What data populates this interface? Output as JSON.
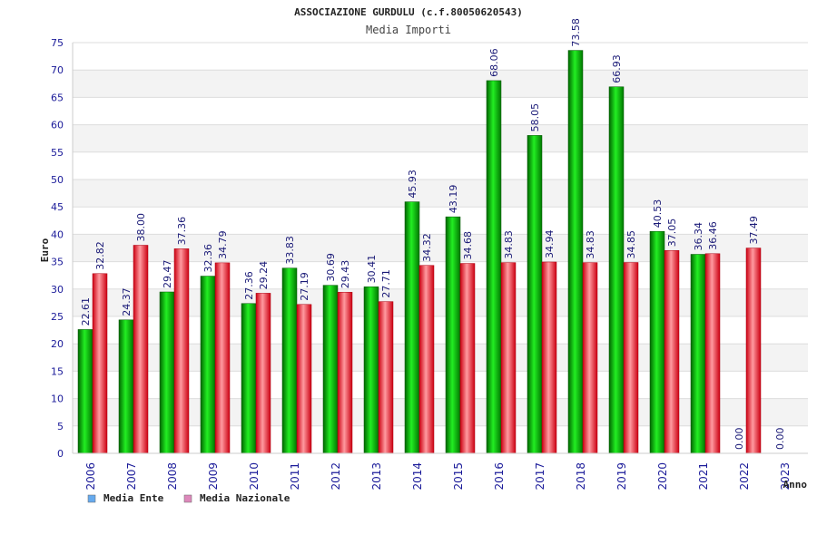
{
  "chart_data": {
    "type": "bar",
    "title": "ASSOCIAZIONE GURDULU (c.f.80050620543)",
    "subtitle": "Media Importi",
    "xlabel": "Anno",
    "ylabel": "Euro",
    "ylim": [
      0,
      75
    ],
    "yticks": [
      0,
      5,
      10,
      15,
      20,
      25,
      30,
      35,
      40,
      45,
      50,
      55,
      60,
      65,
      70,
      75
    ],
    "grid": true,
    "legend_position": "bottom-left",
    "categories": [
      "2006",
      "2007",
      "2008",
      "2009",
      "2010",
      "2011",
      "2012",
      "2013",
      "2014",
      "2015",
      "2016",
      "2017",
      "2018",
      "2019",
      "2020",
      "2021",
      "2022",
      "2023"
    ],
    "series": [
      {
        "name": "Media Ente",
        "color": "#00aa00",
        "legend_color": "#66aaee",
        "values": [
          22.61,
          24.37,
          29.47,
          32.36,
          27.36,
          33.83,
          30.69,
          30.41,
          45.93,
          43.19,
          68.06,
          58.05,
          73.58,
          66.93,
          40.53,
          36.34,
          0.0,
          0.0
        ],
        "labels": [
          "22.61",
          "24.37",
          "29.47",
          "32.36",
          "27.36",
          "33.83",
          "30.69",
          "30.41",
          "45.93",
          "43.19",
          "68.06",
          "58.05",
          "73.58",
          "66.93",
          "40.53",
          "36.34",
          "0.00",
          "0.00"
        ]
      },
      {
        "name": "Media Nazionale",
        "color": "#dd1122",
        "legend_color": "#dd88bb",
        "values": [
          32.82,
          38.0,
          37.36,
          34.79,
          29.24,
          27.19,
          29.43,
          27.71,
          34.32,
          34.68,
          34.83,
          34.94,
          34.83,
          34.85,
          37.05,
          36.46,
          37.49,
          null
        ],
        "labels": [
          "32.82",
          "38.00",
          "37.36",
          "34.79",
          "29.24",
          "27.19",
          "29.43",
          "27.71",
          "34.32",
          "34.68",
          "34.83",
          "34.94",
          "34.83",
          "34.85",
          "37.05",
          "36.46",
          "37.49",
          ""
        ]
      }
    ]
  }
}
